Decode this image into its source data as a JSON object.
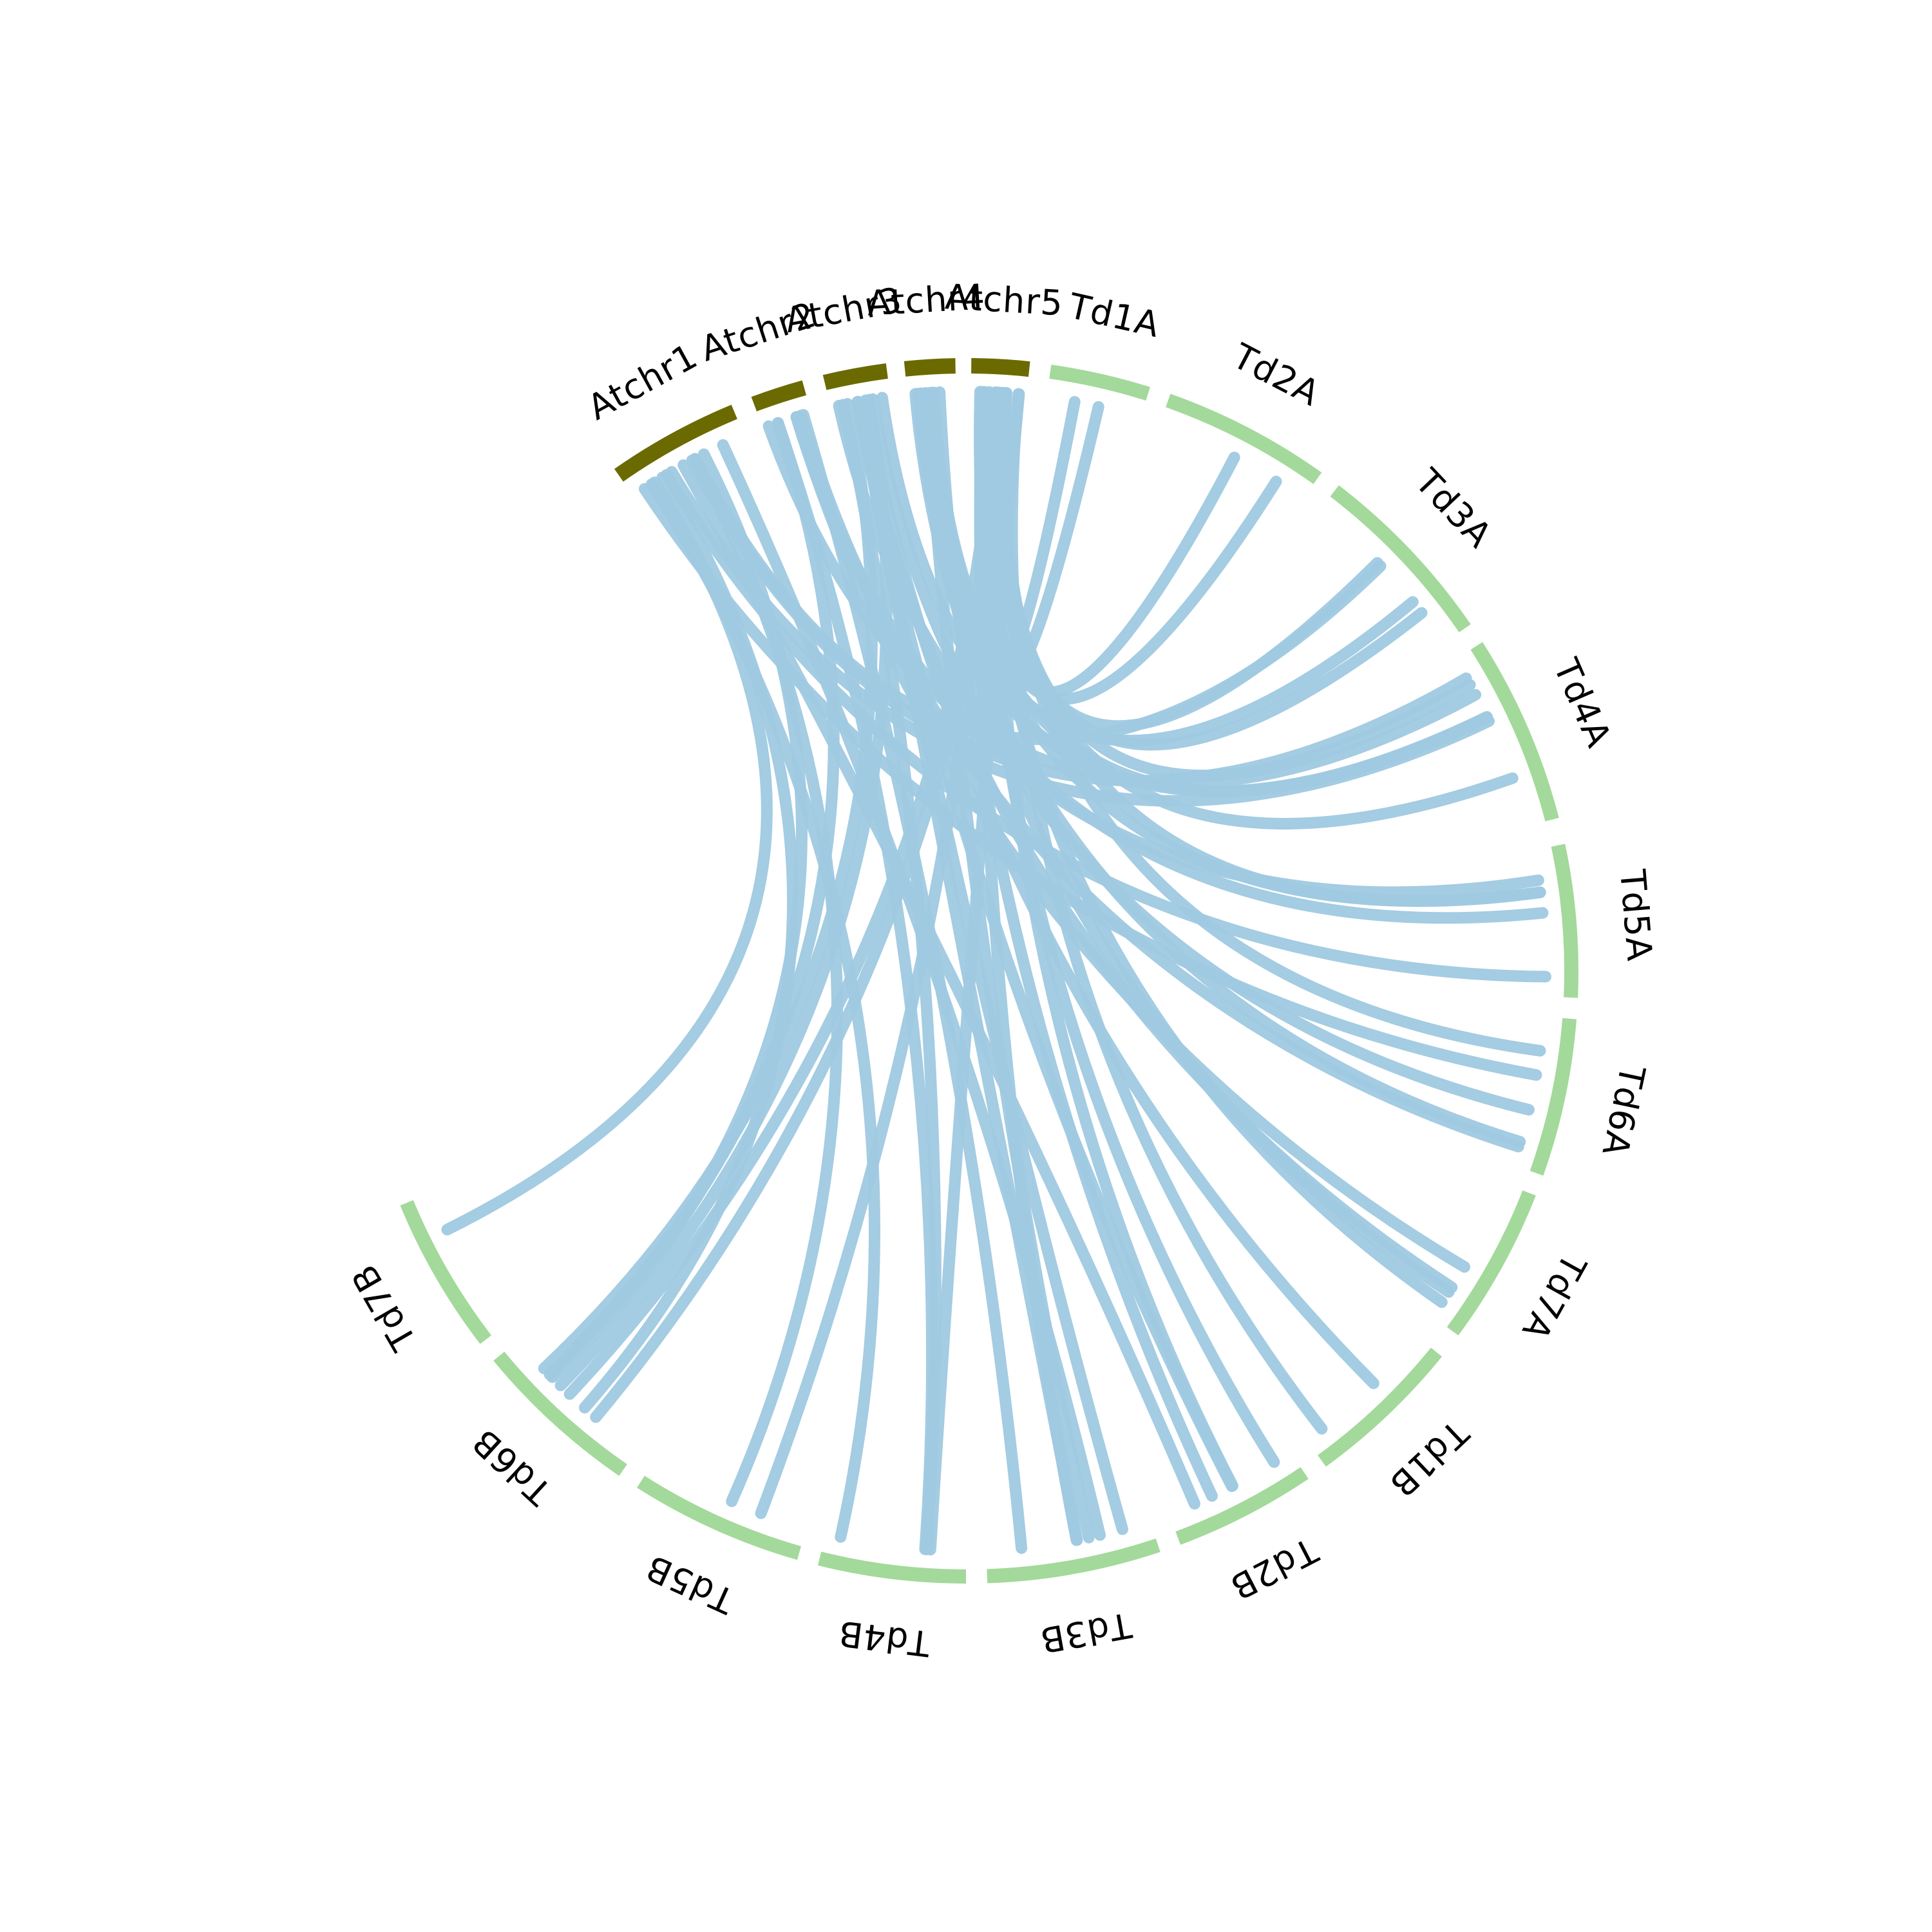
{
  "colors": {
    "at_chromosome": "#6b6a00",
    "td_chromosome": "#a3d99a",
    "link": "#9fc9e0",
    "background": "#ffffff"
  },
  "segments": [
    {
      "id": "Atchr1",
      "label": "Atchr1",
      "group": "at"
    },
    {
      "id": "Atchr2",
      "label": "Atchr2",
      "group": "at"
    },
    {
      "id": "Atchr3",
      "label": "Atchr3",
      "group": "at"
    },
    {
      "id": "Atchr4",
      "label": "Atchr4",
      "group": "at"
    },
    {
      "id": "Atchr5",
      "label": "Atchr5",
      "group": "at"
    },
    {
      "id": "Td1A",
      "label": "Td1A",
      "group": "td"
    },
    {
      "id": "Td2A",
      "label": "Td2A",
      "group": "td"
    },
    {
      "id": "Td3A",
      "label": "Td3A",
      "group": "td"
    },
    {
      "id": "Td4A",
      "label": "Td4A",
      "group": "td"
    },
    {
      "id": "Td5A",
      "label": "Td5A",
      "group": "td"
    },
    {
      "id": "Td6A",
      "label": "Td6A",
      "group": "td"
    },
    {
      "id": "Td7A",
      "label": "Td7A",
      "group": "td"
    },
    {
      "id": "Td1B",
      "label": "Td1B",
      "group": "td"
    },
    {
      "id": "Td2B",
      "label": "Td2B",
      "group": "td"
    },
    {
      "id": "Td3B",
      "label": "Td3B",
      "group": "td"
    },
    {
      "id": "Td4B",
      "label": "Td4B",
      "group": "td"
    },
    {
      "id": "Td5B",
      "label": "Td5B",
      "group": "td"
    },
    {
      "id": "Td6B",
      "label": "Td6B",
      "group": "td"
    },
    {
      "id": "Td7B",
      "label": "Td7B",
      "group": "td"
    }
  ],
  "links": [
    [
      "Atchr5",
      "Td1A"
    ],
    [
      "Atchr5",
      "Td1A"
    ],
    [
      "Atchr5",
      "Td2A"
    ],
    [
      "Atchr5",
      "Td2A"
    ],
    [
      "Atchr5",
      "Td3A"
    ],
    [
      "Atchr5",
      "Td4A"
    ],
    [
      "Atchr5",
      "Td4A"
    ],
    [
      "Atchr5",
      "Td5A"
    ],
    [
      "Atchr5",
      "Td6A"
    ],
    [
      "Atchr5",
      "Td2B"
    ],
    [
      "Atchr5",
      "Td2B"
    ],
    [
      "Atchr5",
      "Td1B"
    ],
    [
      "Atchr5",
      "Td3B"
    ],
    [
      "Atchr5",
      "Td4B"
    ],
    [
      "Atchr5",
      "Td6B"
    ],
    [
      "Atchr5",
      "Td6B"
    ],
    [
      "Atchr5",
      "Td7A"
    ],
    [
      "Atchr5",
      "Td5B"
    ],
    [
      "Atchr4",
      "Td4A"
    ],
    [
      "Atchr4",
      "Td3A"
    ],
    [
      "Atchr4",
      "Td3B"
    ],
    [
      "Atchr4",
      "Td6A"
    ],
    [
      "Atchr4",
      "Td7A"
    ],
    [
      "Atchr4",
      "Td5A"
    ],
    [
      "Atchr3",
      "Td1B"
    ],
    [
      "Atchr3",
      "Td6A"
    ],
    [
      "Atchr3",
      "Td4B"
    ],
    [
      "Atchr3",
      "Td3B"
    ],
    [
      "Atchr3",
      "Td5A"
    ],
    [
      "Atchr3",
      "Td6B"
    ],
    [
      "Atchr3",
      "Td4A"
    ],
    [
      "Atchr3",
      "Td2B"
    ],
    [
      "Atchr3",
      "Td7A"
    ],
    [
      "Atchr3",
      "Td3B"
    ],
    [
      "Atchr2",
      "Td4B"
    ],
    [
      "Atchr2",
      "Td5A"
    ],
    [
      "Atchr2",
      "Td6B"
    ],
    [
      "Atchr2",
      "Td6A"
    ],
    [
      "Atchr2",
      "Td3B"
    ],
    [
      "Atchr2",
      "Td7A"
    ],
    [
      "Atchr1",
      "Td4A"
    ],
    [
      "Atchr1",
      "Td4A"
    ],
    [
      "Atchr1",
      "Td6B"
    ],
    [
      "Atchr1",
      "Td6B"
    ],
    [
      "Atchr1",
      "Td5A"
    ],
    [
      "Atchr1",
      "Td6A"
    ],
    [
      "Atchr1",
      "Td3A"
    ],
    [
      "Atchr1",
      "Td4B"
    ],
    [
      "Atchr1",
      "Td2B"
    ],
    [
      "Atchr1",
      "Td5B"
    ],
    [
      "Atchr1",
      "Td7B"
    ],
    [
      "Atchr1",
      "Td3B"
    ],
    [
      "Atchr2",
      "Td4A"
    ],
    [
      "Atchr4",
      "Td2B"
    ],
    [
      "Atchr5",
      "Td3A"
    ],
    [
      "Atchr3",
      "Td6B"
    ]
  ]
}
